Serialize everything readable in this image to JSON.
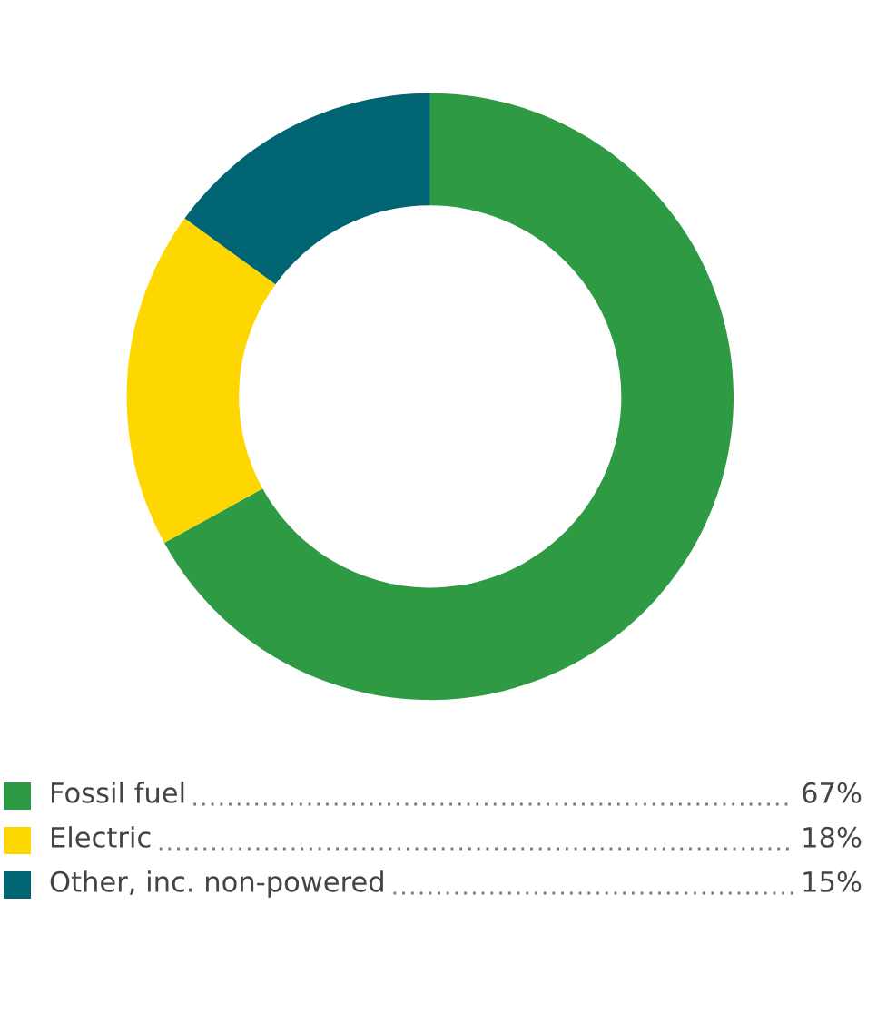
{
  "chart_data": {
    "type": "donut",
    "categories": [
      "Fossil fuel",
      "Electric",
      "Other, inc. non-powered"
    ],
    "values": [
      67,
      18,
      15
    ],
    "colors": [
      "#2e9b44",
      "#ffd700",
      "#006473"
    ],
    "value_labels": [
      "67%",
      "18%",
      "15%"
    ],
    "legend": "bottom"
  }
}
